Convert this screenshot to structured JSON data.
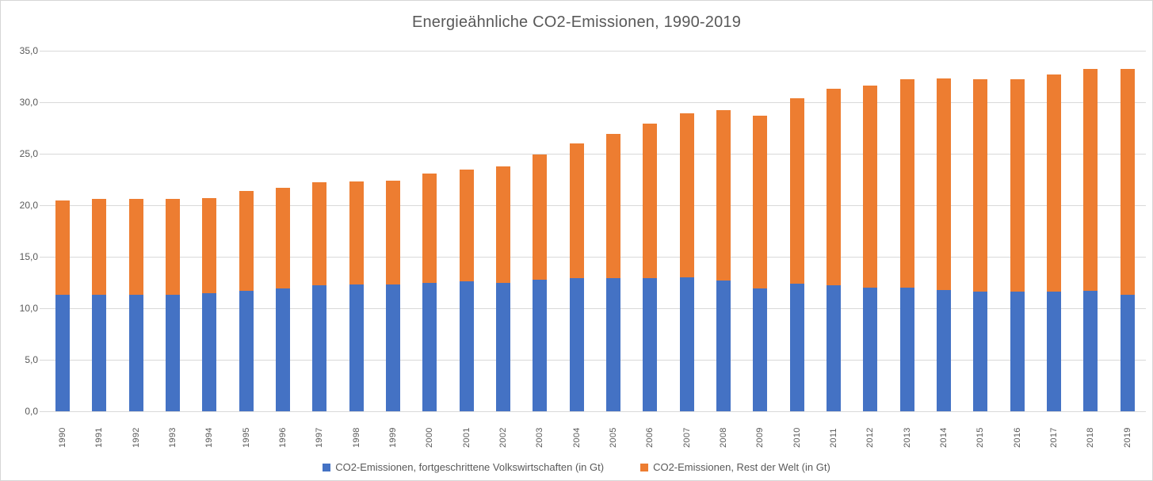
{
  "chart_data": {
    "type": "bar",
    "stacked": true,
    "title": "Energieähnliche CO2-Emissionen, 1990-2019",
    "xlabel": "",
    "ylabel": "",
    "ylim": [
      0,
      35
    ],
    "grid": true,
    "legend_position": "bottom",
    "categories": [
      "1990",
      "1991",
      "1992",
      "1993",
      "1994",
      "1995",
      "1996",
      "1997",
      "1998",
      "1999",
      "2000",
      "2001",
      "2002",
      "2003",
      "2004",
      "2005",
      "2006",
      "2007",
      "2008",
      "2009",
      "2010",
      "2011",
      "2012",
      "2013",
      "2014",
      "2015",
      "2016",
      "2017",
      "2018",
      "2019"
    ],
    "yticks": [
      {
        "value": 0,
        "label": "0,0"
      },
      {
        "value": 5,
        "label": "5,0"
      },
      {
        "value": 10,
        "label": "10,0"
      },
      {
        "value": 15,
        "label": "15,0"
      },
      {
        "value": 20,
        "label": "20,0"
      },
      {
        "value": 25,
        "label": "25,0"
      },
      {
        "value": 30,
        "label": "30,0"
      },
      {
        "value": 35,
        "label": "35,0"
      }
    ],
    "series": [
      {
        "name": "CO2-Emissionen, fortgeschrittene Volkswirtschaften (in Gt)",
        "color": "#4472C4",
        "values": [
          11.3,
          11.3,
          11.3,
          11.3,
          11.5,
          11.7,
          11.9,
          12.2,
          12.3,
          12.3,
          12.5,
          12.6,
          12.5,
          12.8,
          12.9,
          12.9,
          12.9,
          13.0,
          12.7,
          11.9,
          12.4,
          12.2,
          12.0,
          12.0,
          11.8,
          11.6,
          11.6,
          11.6,
          11.7,
          11.3
        ]
      },
      {
        "name": "CO2-Emissionen, Rest der Welt (in Gt)",
        "color": "#ED7D31",
        "values": [
          9.2,
          9.3,
          9.3,
          9.3,
          9.2,
          9.7,
          9.8,
          10.0,
          10.0,
          10.1,
          10.6,
          10.9,
          11.3,
          12.1,
          13.1,
          14.0,
          15.0,
          15.9,
          16.5,
          16.8,
          18.0,
          19.1,
          19.6,
          20.2,
          20.5,
          20.6,
          20.6,
          21.1,
          21.5,
          21.9
        ]
      }
    ],
    "totals": [
      20.5,
      20.6,
      20.6,
      20.6,
      20.7,
      21.4,
      21.7,
      22.2,
      22.3,
      22.4,
      23.1,
      23.5,
      23.8,
      24.9,
      26.0,
      26.9,
      27.9,
      28.9,
      29.2,
      28.7,
      30.4,
      31.3,
      31.6,
      32.2,
      32.3,
      32.2,
      32.2,
      32.7,
      33.2,
      33.2
    ]
  },
  "colors": {
    "gridline": "#d9d9d9",
    "axis_text": "#595959",
    "title_text": "#595959",
    "chart_border": "#d6d6d6"
  }
}
